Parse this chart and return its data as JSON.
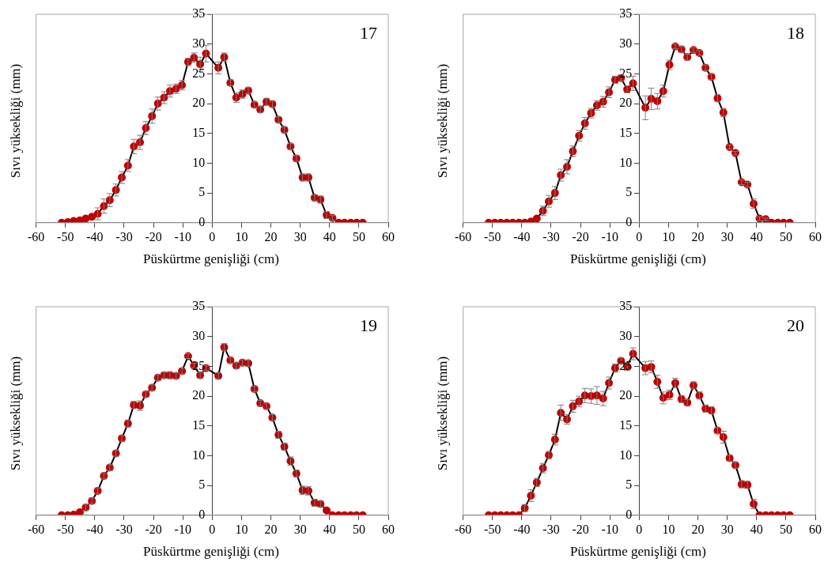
{
  "chart_data": [
    {
      "type": "line",
      "annotations": [
        "17"
      ],
      "xlabel": "Püskürtme genişliği (cm)",
      "ylabel": "Sıvı yüksekliği (mm)",
      "xlim": [
        -60,
        60
      ],
      "xticks": [
        -60,
        -50,
        -40,
        -30,
        -20,
        -10,
        0,
        10,
        20,
        30,
        40,
        50,
        60
      ],
      "ylim": [
        0,
        35
      ],
      "yticks": [
        0,
        5,
        10,
        15,
        20,
        25,
        30,
        35
      ],
      "grid": false,
      "legend": false,
      "marker": "circle",
      "line_style": "solid",
      "x": [
        -51.3,
        -49.2,
        -47.2,
        -45.1,
        -43.1,
        -41.0,
        -39.0,
        -36.9,
        -34.9,
        -32.8,
        -30.8,
        -28.7,
        -26.7,
        -24.6,
        -22.6,
        -20.5,
        -18.5,
        -16.4,
        -14.4,
        -12.3,
        -10.3,
        -8.2,
        -6.2,
        -4.1,
        -2.1,
        2.1,
        4.1,
        6.2,
        8.2,
        10.3,
        12.3,
        14.4,
        16.4,
        18.5,
        20.5,
        22.6,
        24.6,
        26.7,
        28.7,
        30.8,
        32.8,
        34.9,
        36.9,
        39.0,
        41.0,
        43.1,
        45.1,
        47.2,
        49.2,
        51.3
      ],
      "series": [
        {
          "color": "#c00000",
          "values": [
            0,
            0.1,
            0.3,
            0.4,
            0.7,
            1.0,
            1.5,
            2.8,
            3.8,
            5.5,
            7.6,
            9.6,
            12.8,
            13.5,
            15.9,
            17.9,
            20.0,
            21.0,
            22.1,
            22.5,
            23.1,
            27.0,
            27.7,
            26.6,
            28.4,
            26.0,
            27.8,
            23.5,
            21.0,
            21.6,
            22.2,
            19.8,
            19.0,
            20.3,
            19.9,
            17.3,
            15.6,
            12.8,
            10.8,
            7.6,
            7.6,
            4.2,
            3.9,
            1.3,
            0.8,
            0,
            0,
            0,
            0,
            0
          ],
          "errors": [
            0,
            0,
            null,
            null,
            null,
            null,
            1.0,
            1.2,
            1.1,
            1.0,
            1.0,
            1.0,
            1.2,
            1.2,
            1.1,
            1.2,
            1.1,
            1.0,
            1.0,
            0.8,
            0.8,
            0.6,
            0.8,
            1.2,
            1.4,
            1.0,
            0.7,
            0.5,
            0.8,
            0.7,
            0.5,
            0.5,
            0.5,
            0.6,
            0.5,
            0.5,
            0.5,
            0.5,
            0.5,
            0.6,
            0.6,
            0.5,
            0.6,
            0.6,
            0.4,
            0,
            0,
            0,
            0,
            0
          ]
        }
      ]
    },
    {
      "type": "line",
      "annotations": [
        "18"
      ],
      "xlabel": "Püskürtme genişliği (cm)",
      "ylabel": "Sıvı yüksekliği (mm)",
      "xlim": [
        -60,
        60
      ],
      "xticks": [
        -60,
        -50,
        -40,
        -30,
        -20,
        -10,
        0,
        10,
        20,
        30,
        40,
        50,
        60
      ],
      "ylim": [
        0,
        35
      ],
      "yticks": [
        0,
        5,
        10,
        15,
        20,
        25,
        30,
        35
      ],
      "grid": false,
      "legend": false,
      "marker": "circle",
      "line_style": "solid",
      "x": [
        -51.3,
        -49.2,
        -47.2,
        -45.1,
        -43.1,
        -41.0,
        -39.0,
        -36.9,
        -34.9,
        -32.8,
        -30.8,
        -28.7,
        -26.7,
        -24.6,
        -22.6,
        -20.5,
        -18.5,
        -16.4,
        -14.4,
        -12.3,
        -10.3,
        -8.2,
        -6.2,
        -4.1,
        -2.1,
        2.1,
        4.1,
        6.2,
        8.2,
        10.3,
        12.3,
        14.4,
        16.4,
        18.5,
        20.5,
        22.6,
        24.6,
        26.7,
        28.7,
        30.8,
        32.8,
        34.9,
        36.9,
        39.0,
        41.0,
        43.1,
        45.1,
        47.2,
        49.2,
        51.3
      ],
      "series": [
        {
          "color": "#c00000",
          "values": [
            0,
            0,
            0,
            0,
            0,
            0,
            0,
            0.2,
            0.7,
            2.0,
            3.6,
            5.0,
            8.0,
            9.4,
            12.0,
            14.6,
            16.7,
            18.4,
            19.7,
            20.3,
            21.9,
            24.0,
            24.3,
            22.4,
            23.4,
            19.3,
            20.8,
            20.4,
            22.1,
            26.5,
            29.6,
            29.1,
            27.8,
            29.0,
            28.5,
            26.0,
            24.5,
            20.9,
            18.5,
            12.7,
            11.7,
            6.8,
            6.4,
            3.2,
            0.7,
            0.6,
            0,
            0,
            0,
            0
          ],
          "errors": [
            0,
            0,
            0,
            0,
            0,
            0,
            0,
            null,
            null,
            0.8,
            1.0,
            1.1,
            1.0,
            1.2,
            0.9,
            0.9,
            1.0,
            0.8,
            0.8,
            0.9,
            0.9,
            0.6,
            0.5,
            0.6,
            1.2,
            2.0,
            1.8,
            1.3,
            1.0,
            0.8,
            0.4,
            0.5,
            0.5,
            0.4,
            0.4,
            0.5,
            0.5,
            0.6,
            0.7,
            0.3,
            0.3,
            0.4,
            0.4,
            0.8,
            0.3,
            0.2,
            0,
            0,
            0,
            0
          ]
        }
      ]
    },
    {
      "type": "line",
      "annotations": [
        "19"
      ],
      "xlabel": "Püskürtme genişliği (cm)",
      "ylabel": "Sıvı yüksekliği (mm)",
      "xlim": [
        -60,
        60
      ],
      "xticks": [
        -60,
        -50,
        -40,
        -30,
        -20,
        -10,
        0,
        10,
        20,
        30,
        40,
        50,
        60
      ],
      "ylim": [
        0,
        35
      ],
      "yticks": [
        0,
        5,
        10,
        15,
        20,
        25,
        30,
        35
      ],
      "grid": false,
      "legend": false,
      "marker": "circle",
      "line_style": "solid",
      "x": [
        -51.3,
        -49.2,
        -47.2,
        -45.1,
        -43.1,
        -41.0,
        -39.0,
        -36.9,
        -34.9,
        -32.8,
        -30.8,
        -28.7,
        -26.7,
        -24.6,
        -22.6,
        -20.5,
        -18.5,
        -16.4,
        -14.4,
        -12.3,
        -10.3,
        -8.2,
        -6.2,
        -4.1,
        -2.1,
        2.1,
        4.1,
        6.2,
        8.2,
        10.3,
        12.3,
        14.4,
        16.4,
        18.5,
        20.5,
        22.6,
        24.6,
        26.7,
        28.7,
        30.8,
        32.8,
        34.9,
        36.9,
        39.0,
        41.0,
        43.1,
        45.1,
        47.2,
        49.2,
        51.3
      ],
      "series": [
        {
          "color": "#c00000",
          "values": [
            0,
            0,
            0.1,
            0.5,
            1.3,
            2.4,
            4.1,
            6.6,
            8.0,
            10.4,
            12.9,
            15.4,
            18.5,
            18.4,
            20.3,
            21.4,
            23.1,
            23.5,
            23.5,
            23.4,
            24.2,
            26.7,
            25.1,
            23.5,
            24.7,
            23.4,
            28.2,
            26.0,
            25.1,
            25.6,
            25.5,
            21.2,
            18.8,
            18.3,
            16.4,
            13.5,
            11.5,
            9.1,
            7.0,
            4.2,
            4.1,
            2.1,
            1.9,
            0.8,
            0,
            0,
            0,
            0,
            0,
            0
          ],
          "errors": [
            0,
            0,
            0,
            null,
            0.5,
            0.5,
            0.5,
            0.5,
            0.5,
            0.5,
            0.5,
            0.6,
            0.6,
            0.8,
            0.5,
            0.5,
            0.5,
            0.5,
            0.6,
            0.5,
            0.5,
            0.4,
            0.4,
            0.5,
            0.4,
            0.5,
            0.6,
            0.5,
            0.5,
            0.5,
            0.5,
            0.5,
            0.5,
            0.5,
            0.5,
            0.6,
            0.6,
            0.7,
            0.6,
            0.7,
            0.7,
            0.6,
            0.5,
            null,
            0,
            0,
            0,
            0,
            0,
            0
          ]
        }
      ]
    },
    {
      "type": "line",
      "annotations": [
        "20"
      ],
      "xlabel": "Püskürtme genişliği (cm)",
      "ylabel": "Sıvı yüksekliği (mm)",
      "xlim": [
        -60,
        60
      ],
      "xticks": [
        -60,
        -50,
        -40,
        -30,
        -20,
        -10,
        0,
        10,
        20,
        30,
        40,
        50,
        60
      ],
      "ylim": [
        0,
        35
      ],
      "yticks": [
        0,
        5,
        10,
        15,
        20,
        25,
        30,
        35
      ],
      "grid": false,
      "legend": false,
      "marker": "circle",
      "line_style": "solid",
      "x": [
        -51.3,
        -49.2,
        -47.2,
        -45.1,
        -43.1,
        -41.0,
        -39.0,
        -36.9,
        -34.9,
        -32.8,
        -30.8,
        -28.7,
        -26.7,
        -24.6,
        -22.6,
        -20.5,
        -18.5,
        -16.4,
        -14.4,
        -12.3,
        -10.3,
        -8.2,
        -6.2,
        -4.1,
        -2.1,
        2.1,
        4.1,
        6.2,
        8.2,
        10.3,
        12.3,
        14.4,
        16.4,
        18.5,
        20.5,
        22.6,
        24.6,
        26.7,
        28.7,
        30.8,
        32.8,
        34.9,
        36.9,
        39.0,
        41.0,
        43.1,
        45.1,
        47.2,
        49.2,
        51.3
      ],
      "series": [
        {
          "color": "#c00000",
          "values": [
            0,
            0,
            0,
            0,
            0,
            0,
            1.2,
            3.3,
            5.5,
            7.9,
            10.1,
            12.7,
            17.2,
            16.1,
            18.3,
            19.1,
            20.1,
            20.0,
            20.1,
            19.6,
            22.2,
            24.7,
            25.9,
            25.0,
            27.1,
            24.7,
            24.9,
            22.4,
            19.7,
            20.2,
            22.2,
            19.5,
            18.9,
            21.8,
            20.1,
            17.9,
            17.6,
            14.2,
            13.1,
            9.6,
            8.4,
            5.2,
            5.1,
            1.9,
            0,
            0,
            0,
            0,
            0,
            0
          ],
          "errors": [
            0,
            0,
            0,
            0,
            0,
            0,
            0.6,
            1.0,
            0.7,
            0.8,
            0.6,
            0.9,
            1.3,
            0.8,
            1.0,
            0.9,
            1.2,
            1.2,
            1.5,
            1.2,
            1.0,
            0.7,
            0.5,
            0.7,
            1.0,
            1.1,
            1.0,
            1.1,
            1.0,
            0.8,
            0.8,
            0.6,
            0.5,
            0.6,
            0.6,
            0.6,
            0.6,
            0.5,
            1.0,
            0.5,
            0.5,
            0.6,
            0.6,
            0.8,
            0,
            0,
            0,
            0,
            0,
            0
          ]
        }
      ]
    }
  ]
}
